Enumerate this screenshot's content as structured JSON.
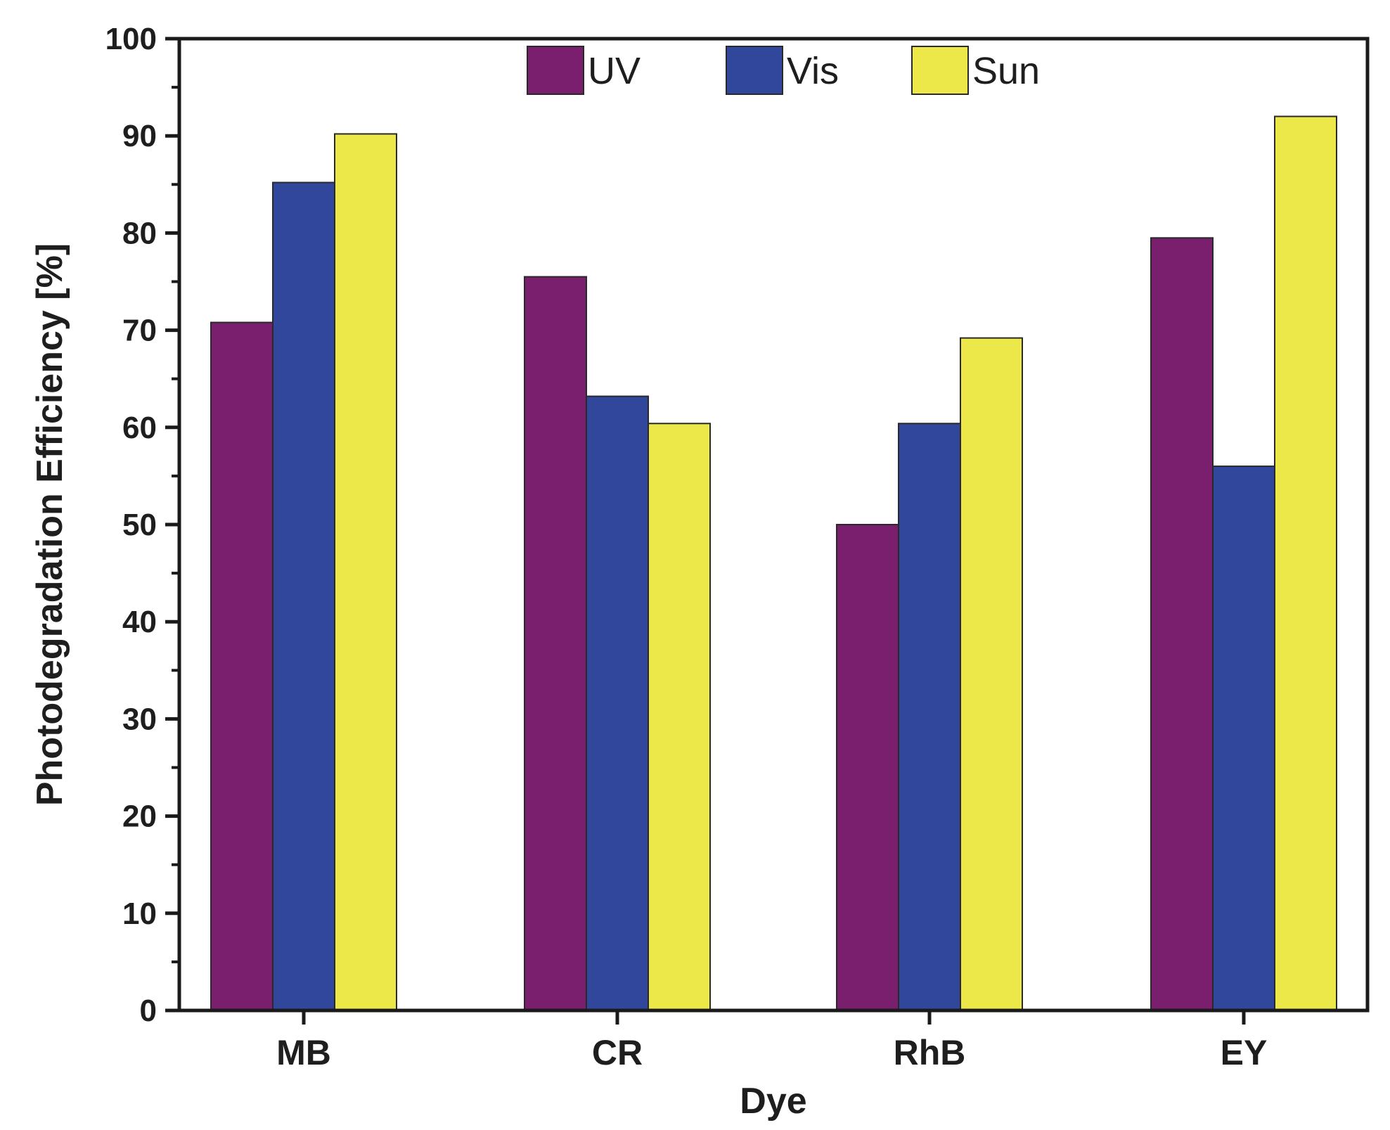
{
  "chart_data": {
    "type": "bar",
    "categories": [
      "MB",
      "CR",
      "RhB",
      "EY"
    ],
    "series": [
      {
        "name": "UV",
        "color": "#7a1f6e",
        "values": [
          70.8,
          75.5,
          50.0,
          79.5
        ]
      },
      {
        "name": "Vis",
        "color": "#30479c",
        "values": [
          85.2,
          63.2,
          60.4,
          56.0
        ]
      },
      {
        "name": "Sun",
        "color": "#ece84a",
        "values": [
          90.2,
          60.4,
          69.2,
          92.0
        ]
      }
    ],
    "xlabel": "Dye",
    "ylabel": "Photodegradation Efficiency [%]",
    "ylim": [
      0,
      100
    ],
    "yticks": [
      0,
      10,
      20,
      30,
      40,
      50,
      60,
      70,
      80,
      90,
      100
    ],
    "legend_position": "top-center",
    "grid": false
  }
}
